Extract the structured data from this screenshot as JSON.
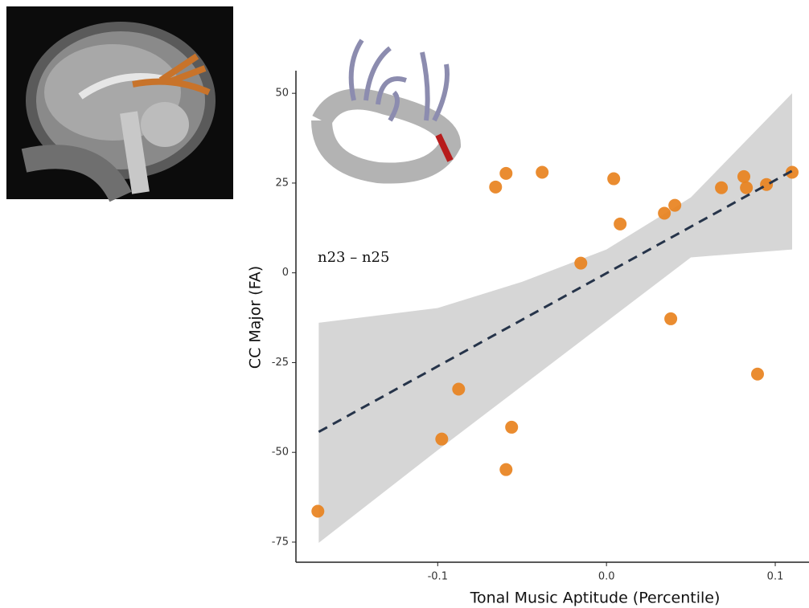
{
  "chart_data": {
    "type": "scatter",
    "x_label": "Tonal Music Aptitude (Percentile)",
    "y_label": "CC Major (FA)",
    "annotation": "n23 – n25",
    "xlim": [
      -0.184,
      0.12
    ],
    "ylim": [
      -80.6,
      56.3
    ],
    "xticks": [
      -0.1,
      {
        "value": 0,
        "label": "0.0"
      },
      0.1
    ],
    "yticks": [
      50,
      25,
      0,
      -25,
      -50,
      -75
    ],
    "color": "#e8821e",
    "x": [
      -0.171,
      -0.0976,
      -0.0876,
      -0.0562,
      -0.0595,
      -0.0657,
      -0.0595,
      -0.0381,
      -0.0152,
      0.0043,
      0.0081,
      0.0343,
      0.0405,
      0.0381,
      0.0681,
      0.0814,
      0.0829,
      0.0948,
      0.11,
      0.0895
    ],
    "y": [
      -66.4,
      -46.3,
      -32.4,
      -43.0,
      -54.8,
      23.9,
      27.7,
      28.0,
      2.7,
      26.2,
      13.6,
      16.6,
      18.8,
      -12.8,
      23.7,
      26.8,
      23.7,
      24.6,
      28.0,
      -28.2
    ],
    "fit": {
      "color": "#26344a",
      "x": [
        -0.1705,
        0.11
      ],
      "y": [
        -44.3,
        28.4
      ]
    },
    "band": {
      "color": "#d6d6d6",
      "x": [
        -0.1705,
        -0.1,
        -0.05,
        0,
        0.05,
        0.11
      ],
      "upper": [
        -13.9,
        -9.8,
        -2.5,
        6.5,
        21,
        50
      ],
      "lower": [
        -75.2,
        -49.4,
        -31.5,
        -13.6,
        4.3,
        6.5
      ]
    }
  }
}
